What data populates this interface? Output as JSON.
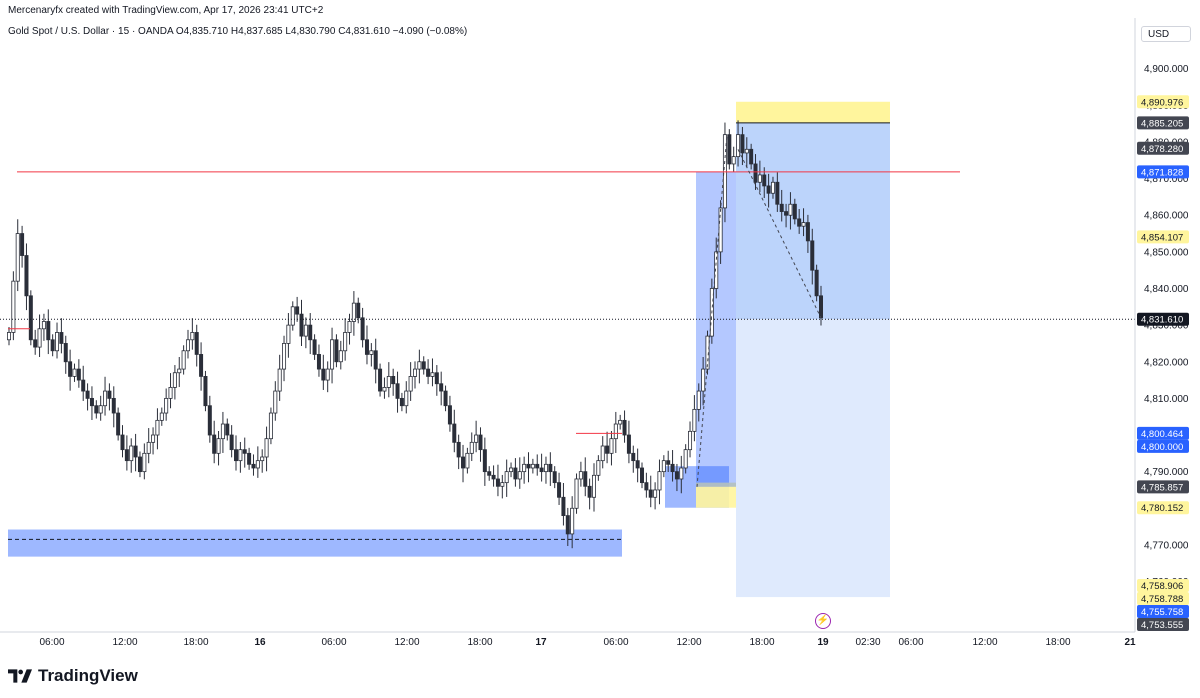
{
  "header": {
    "credit": "Mercenaryfx created with TradingView.com, Apr 17, 2026 23:41 UTC+2",
    "symbol_line": "Gold Spot / U.S. Dollar · 15 · OANDA  O4,835.710  H4,837.685  L4,830.790  C4,831.610  −4.090 (−0.08%)"
  },
  "price_scale": {
    "currency": "USD",
    "ticks": [
      "4,900.000",
      "4,890.000",
      "4,880.000",
      "4,870.000",
      "4,860.000",
      "4,850.000",
      "4,840.000",
      "4,830.000",
      "4,820.000",
      "4,810.000",
      "4,800.000",
      "4,790.000",
      "4,780.000",
      "4,770.000",
      "4,760.000"
    ]
  },
  "price_labels": [
    {
      "text": "4,890.976",
      "value": 4890.976,
      "bg": "#fff59d",
      "fg": "#131722"
    },
    {
      "text": "4,885.205",
      "value": 4885.205,
      "bg": "#434651",
      "fg": "#ffffff"
    },
    {
      "text": "4,878.280",
      "value": 4878.28,
      "bg": "#434651",
      "fg": "#ffffff"
    },
    {
      "text": "4,871.828",
      "value": 4871.828,
      "bg": "#2962ff",
      "fg": "#ffffff"
    },
    {
      "text": "4,854.107",
      "value": 4854.107,
      "bg": "#fff59d",
      "fg": "#131722"
    },
    {
      "text": "4,831.610",
      "value": 4831.61,
      "bg": "#131722",
      "fg": "#ffffff"
    },
    {
      "text": "4,800.464",
      "value": 4800.464,
      "bg": "#2962ff",
      "fg": "#ffffff"
    },
    {
      "text": "4,800.000",
      "value": 4800.0,
      "bg": "#2962ff",
      "fg": "#ffffff"
    },
    {
      "text": "4,785.857",
      "value": 4785.857,
      "bg": "#434651",
      "fg": "#ffffff"
    },
    {
      "text": "4,780.152",
      "value": 4780.152,
      "bg": "#fff59d",
      "fg": "#131722"
    },
    {
      "text": "4,758.906",
      "value": 4758.906,
      "bg": "#fff59d",
      "fg": "#131722"
    },
    {
      "text": "4,758.788",
      "value": 4758.788,
      "bg": "#fff59d",
      "fg": "#131722"
    },
    {
      "text": "4,755.758",
      "value": 4755.758,
      "bg": "#2962ff",
      "fg": "#ffffff"
    },
    {
      "text": "4,753.555",
      "value": 4753.555,
      "bg": "#434651",
      "fg": "#ffffff"
    }
  ],
  "time_axis": {
    "ticks": [
      "06:00",
      "12:00",
      "18:00",
      "16",
      "06:00",
      "12:00",
      "18:00",
      "17",
      "06:00",
      "12:00",
      "18:00",
      "19",
      "02:30",
      "06:00",
      "12:00",
      "18:00",
      "21"
    ],
    "bold": [
      "16",
      "17",
      "19",
      "21"
    ]
  },
  "brand": {
    "name": "TradingView"
  },
  "colors": {
    "up": "#089981",
    "down": "#f23645",
    "candle": "#2a2e39",
    "demand_zone": "#2962ff",
    "resistance": "#f23645",
    "target_zone": "#fff59d",
    "position_dark": "#90b8f8",
    "position_light": "#dbe8fd"
  },
  "chart_data": {
    "type": "candlestick",
    "ylim": [
      4749.5,
      4906.2
    ],
    "series": [
      {
        "name": "XAUUSD 15m",
        "type": "line",
        "y": [
          4828,
          4842,
          4855,
          4849,
          4838,
          4826,
          4824,
          4829,
          4831,
          4826,
          4823,
          4828,
          4825,
          4820,
          4816,
          4818,
          4815,
          4812,
          4810,
          4808,
          4806,
          4808,
          4812,
          4810,
          4806,
          4800,
          4796,
          4793,
          4797,
          4794,
          4790,
          4795,
          4798,
          4800,
          4804,
          4806,
          4810,
          4813,
          4817,
          4818,
          4823,
          4826,
          4828,
          4822,
          4816,
          4808,
          4800,
          4795,
          4799,
          4803,
          4800,
          4796,
          4793,
          4796,
          4795,
          4792,
          4791,
          4793,
          4794,
          4799,
          4806,
          4812,
          4818,
          4825,
          4830,
          4835,
          4833,
          4827,
          4830,
          4826,
          4822,
          4818,
          4815,
          4818,
          4826,
          4820,
          4823,
          4828,
          4831,
          4836,
          4832,
          4826,
          4822,
          4823,
          4818,
          4812,
          4813,
          4816,
          4814,
          4810,
          4808,
          4812,
          4816,
          4818,
          4820,
          4818,
          4816,
          4817,
          4814,
          4812,
          4808,
          4803,
          4798,
          4794,
          4791,
          4795,
          4798,
          4800,
          4796,
          4790,
          4789,
          4788,
          4786,
          4787,
          4790,
          4791,
          4788,
          4790,
          4792,
          4791,
          4792,
          4791,
          4790,
          4792,
          4790,
          4787,
          4783,
          4778,
          4773,
          4780,
          4788,
          4790,
          4786,
          4783,
          4789,
          4793,
          4797,
          4795,
          4799,
          4803,
          4804,
          4800,
          4795,
          4793,
          4791,
          4787,
          4785,
          4783,
          4785,
          4790,
          4793,
          4792,
          4790,
          4788,
          4791,
          4796,
          4801,
          4807,
          4812,
          4818,
          4827,
          4840,
          4850,
          4862,
          4882,
          4874,
          4876,
          4882,
          4877,
          4878,
          4874,
          4869,
          4871,
          4868,
          4866,
          4869,
          4863,
          4861,
          4860,
          4863,
          4859,
          4857,
          4858,
          4853,
          4845,
          4838,
          4832
        ]
      }
    ],
    "annotations": {
      "resistance_line": 4871.828,
      "resistance_line_2": 4800.464,
      "demand_zone": [
        4766.8,
        4774.2
      ],
      "demand_zone_mid": 4771.5,
      "position_entry": 4831.61,
      "position_stop": [
        4885.205,
        4890.976
      ],
      "position_target": 4755.758,
      "pre_zone": [
        4780.152,
        4791.5
      ],
      "last_price": 4831.61
    }
  }
}
